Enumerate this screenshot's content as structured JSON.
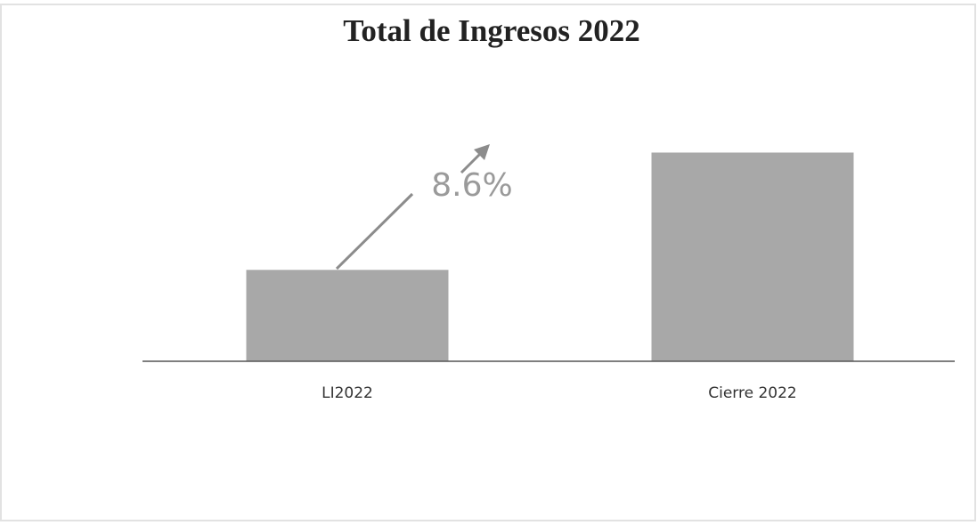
{
  "chart_data": {
    "type": "bar",
    "title": "Total de Ingresos 2022",
    "categories": [
      "LI2022",
      "Cierre 2022"
    ],
    "values": [
      100,
      108.6
    ],
    "color": "#a8a8a8",
    "ylim": [
      93.3,
      110
    ],
    "annotation": "8.6%"
  }
}
